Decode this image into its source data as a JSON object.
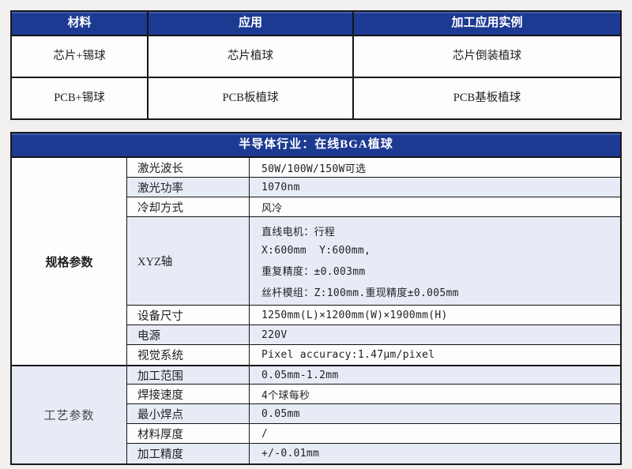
{
  "colors": {
    "header_navy": "#1d3a92",
    "row_alt_lavender": "#e7ebf6",
    "row_white": "#fdfdfd",
    "border_black": "#141414",
    "page_background": "#f2f0ef",
    "header_text": "#ffffff"
  },
  "materials_table": {
    "headers": [
      "材料",
      "应用",
      "加工应用实例"
    ],
    "rows": [
      [
        "芯片+锡球",
        "芯片植球",
        "芯片倒装植球"
      ],
      [
        "PCB+锡球",
        "PCB板植球",
        "PCB基板植球"
      ]
    ]
  },
  "spec_table": {
    "title": "半导体行业：在线BGA植球",
    "groups": [
      {
        "label": "规格参数",
        "rows": [
          {
            "name": "激光波长",
            "value": "50W/100W/150W可选"
          },
          {
            "name": "激光功率",
            "value": "1070nm"
          },
          {
            "name": "冷却方式",
            "value": "风冷"
          },
          {
            "name": "XYZ轴",
            "value_lines": [
              "直线电机：行程",
              "X:600mm  Y:600mm,",
              "重复精度：±0.003mm",
              "丝杆模组：Z:100mm.重现精度±0.005mm"
            ]
          },
          {
            "name": "设备尺寸",
            "value": "1250mm(L)×1200mm(W)×1900mm(H)"
          },
          {
            "name": "电源",
            "value": "220V"
          },
          {
            "name": "视觉系统",
            "value": "Pixel accuracy:1.47μm/pixel"
          }
        ]
      },
      {
        "label": "工艺参数",
        "rows": [
          {
            "name": "加工范围",
            "value": "0.05mm-1.2mm"
          },
          {
            "name": "焊接速度",
            "value": "4个球每秒"
          },
          {
            "name": "最小焊点",
            "value": "0.05mm"
          },
          {
            "name": "材料厚度",
            "value": "/"
          },
          {
            "name": "加工精度",
            "value": "+/-0.01mm"
          }
        ]
      }
    ]
  }
}
